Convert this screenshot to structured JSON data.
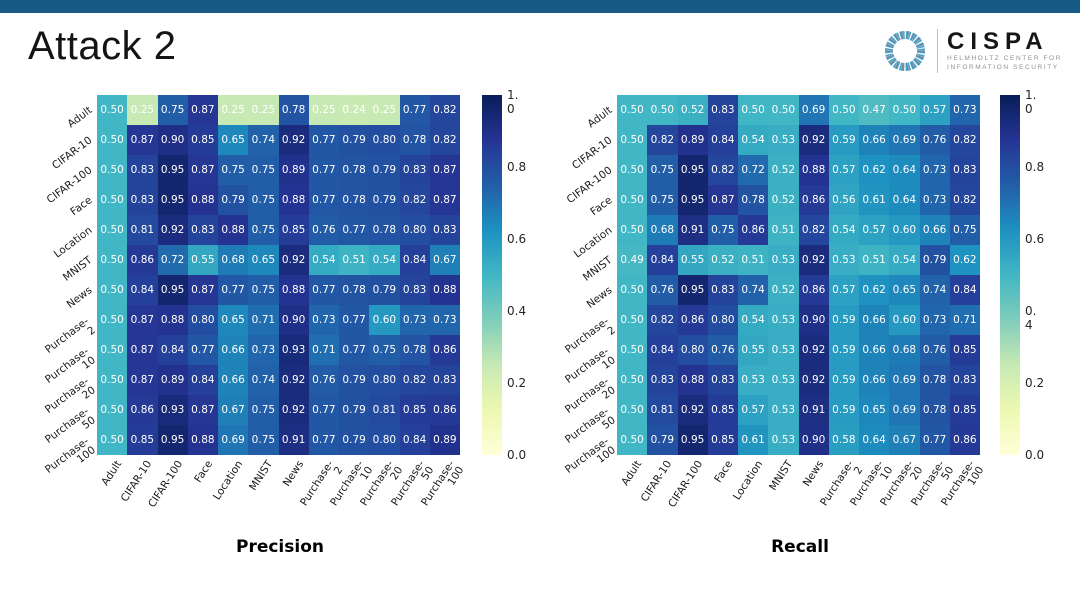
{
  "slide": {
    "title": "Attack 2"
  },
  "logo": {
    "name": "CISPA",
    "subtitle_line1": "HELMHOLTZ CENTER FOR",
    "subtitle_line2": "INFORMATION SECURITY"
  },
  "colors": {
    "top_bar": "#175a85",
    "cell_text": "#ffffff",
    "ring_blue": "#4aa3cf",
    "ring_grey": "#5b6770",
    "colormap_anchors": [
      [
        0.0,
        "#ffffd9"
      ],
      [
        0.125,
        "#edf8b1"
      ],
      [
        0.25,
        "#c7e9b4"
      ],
      [
        0.375,
        "#7fcdbb"
      ],
      [
        0.5,
        "#41b6c4"
      ],
      [
        0.625,
        "#1d91c0"
      ],
      [
        0.75,
        "#225ea8"
      ],
      [
        0.875,
        "#253494"
      ],
      [
        1.0,
        "#081d58"
      ]
    ]
  },
  "chart_data": [
    {
      "type": "heatmap",
      "title": "Precision",
      "vmin": 0.0,
      "vmax": 1.0,
      "colorbar_ticks": [
        "1.\n0",
        "0.8",
        "0.6",
        "0.4",
        "0.2",
        "0.0"
      ],
      "row_labels": [
        "Adult",
        "CIFAR-10",
        "CIFAR-100",
        "Face",
        "Location",
        "MNIST",
        "News",
        "Purchase-\n2",
        "Purchase-\n10",
        "Purchase-\n20",
        "Purchase-\n50",
        "Purchase-\n100"
      ],
      "col_labels": [
        "Adult",
        "CIFAR-10",
        "CIFAR-100",
        "Face",
        "Location",
        "MNIST",
        "News",
        "Purchase-\n2",
        "Purchase-\n10",
        "Purchase-\n20",
        "Purchase-\n50",
        "Purchase-\n100"
      ],
      "values": [
        [
          0.5,
          0.25,
          0.75,
          0.87,
          0.25,
          0.25,
          0.78,
          0.25,
          0.24,
          0.25,
          0.77,
          0.82
        ],
        [
          0.5,
          0.87,
          0.9,
          0.85,
          0.65,
          0.74,
          0.92,
          0.77,
          0.79,
          0.8,
          0.78,
          0.82
        ],
        [
          0.5,
          0.83,
          0.95,
          0.87,
          0.75,
          0.75,
          0.89,
          0.77,
          0.78,
          0.79,
          0.83,
          0.87
        ],
        [
          0.5,
          0.83,
          0.95,
          0.88,
          0.79,
          0.75,
          0.88,
          0.77,
          0.78,
          0.79,
          0.82,
          0.87
        ],
        [
          0.5,
          0.81,
          0.92,
          0.83,
          0.88,
          0.75,
          0.85,
          0.76,
          0.77,
          0.78,
          0.8,
          0.83
        ],
        [
          0.5,
          0.86,
          0.72,
          0.55,
          0.68,
          0.65,
          0.92,
          0.54,
          0.51,
          0.54,
          0.84,
          0.67
        ],
        [
          0.5,
          0.84,
          0.95,
          0.87,
          0.77,
          0.75,
          0.88,
          0.77,
          0.78,
          0.79,
          0.83,
          0.88
        ],
        [
          0.5,
          0.87,
          0.88,
          0.8,
          0.65,
          0.71,
          0.9,
          0.73,
          0.77,
          0.6,
          0.73,
          0.73
        ],
        [
          0.5,
          0.87,
          0.84,
          0.77,
          0.66,
          0.73,
          0.93,
          0.71,
          0.77,
          0.75,
          0.78,
          0.86
        ],
        [
          0.5,
          0.87,
          0.89,
          0.84,
          0.66,
          0.74,
          0.92,
          0.76,
          0.79,
          0.8,
          0.82,
          0.83
        ],
        [
          0.5,
          0.86,
          0.93,
          0.87,
          0.67,
          0.75,
          0.92,
          0.77,
          0.79,
          0.81,
          0.85,
          0.86
        ],
        [
          0.5,
          0.85,
          0.95,
          0.88,
          0.69,
          0.75,
          0.91,
          0.77,
          0.79,
          0.8,
          0.84,
          0.89
        ]
      ]
    },
    {
      "type": "heatmap",
      "title": "Recall",
      "vmin": 0.0,
      "vmax": 1.0,
      "colorbar_ticks": [
        "1.\n0",
        "0.8",
        "0.6",
        "0.\n4",
        "0.2",
        "0.0"
      ],
      "row_labels": [
        "Adult",
        "CIFAR-10",
        "CIFAR-100",
        "Face",
        "Location",
        "MNIST",
        "News",
        "Purchase-\n2",
        "Purchase-\n10",
        "Purchase-\n20",
        "Purchase-\n50",
        "Purchase-\n100"
      ],
      "col_labels": [
        "Adult",
        "CIFAR-10",
        "CIFAR-100",
        "Face",
        "Location",
        "MNIST",
        "News",
        "Purchase-\n2",
        "Purchase-\n10",
        "Purchase-\n20",
        "Purchase-\n50",
        "Purchase-\n100"
      ],
      "values": [
        [
          0.5,
          0.5,
          0.52,
          0.83,
          0.5,
          0.5,
          0.69,
          0.5,
          0.47,
          0.5,
          0.57,
          0.73
        ],
        [
          0.5,
          0.82,
          0.89,
          0.84,
          0.54,
          0.53,
          0.92,
          0.59,
          0.66,
          0.69,
          0.76,
          0.82
        ],
        [
          0.5,
          0.75,
          0.95,
          0.82,
          0.72,
          0.52,
          0.88,
          0.57,
          0.62,
          0.64,
          0.73,
          0.83
        ],
        [
          0.5,
          0.75,
          0.95,
          0.87,
          0.78,
          0.52,
          0.86,
          0.56,
          0.61,
          0.64,
          0.73,
          0.82
        ],
        [
          0.5,
          0.68,
          0.91,
          0.75,
          0.86,
          0.51,
          0.82,
          0.54,
          0.57,
          0.6,
          0.66,
          0.75
        ],
        [
          0.49,
          0.84,
          0.55,
          0.52,
          0.51,
          0.53,
          0.92,
          0.53,
          0.51,
          0.54,
          0.79,
          0.62
        ],
        [
          0.5,
          0.76,
          0.95,
          0.83,
          0.74,
          0.52,
          0.86,
          0.57,
          0.62,
          0.65,
          0.74,
          0.84
        ],
        [
          0.5,
          0.82,
          0.86,
          0.8,
          0.54,
          0.53,
          0.9,
          0.59,
          0.66,
          0.6,
          0.73,
          0.71
        ],
        [
          0.5,
          0.84,
          0.8,
          0.76,
          0.55,
          0.53,
          0.92,
          0.59,
          0.66,
          0.68,
          0.76,
          0.85
        ],
        [
          0.5,
          0.83,
          0.88,
          0.83,
          0.53,
          0.53,
          0.92,
          0.59,
          0.66,
          0.69,
          0.78,
          0.83
        ],
        [
          0.5,
          0.81,
          0.92,
          0.85,
          0.57,
          0.53,
          0.91,
          0.59,
          0.65,
          0.69,
          0.78,
          0.85
        ],
        [
          0.5,
          0.79,
          0.95,
          0.85,
          0.61,
          0.53,
          0.9,
          0.58,
          0.64,
          0.67,
          0.77,
          0.86
        ]
      ]
    }
  ]
}
